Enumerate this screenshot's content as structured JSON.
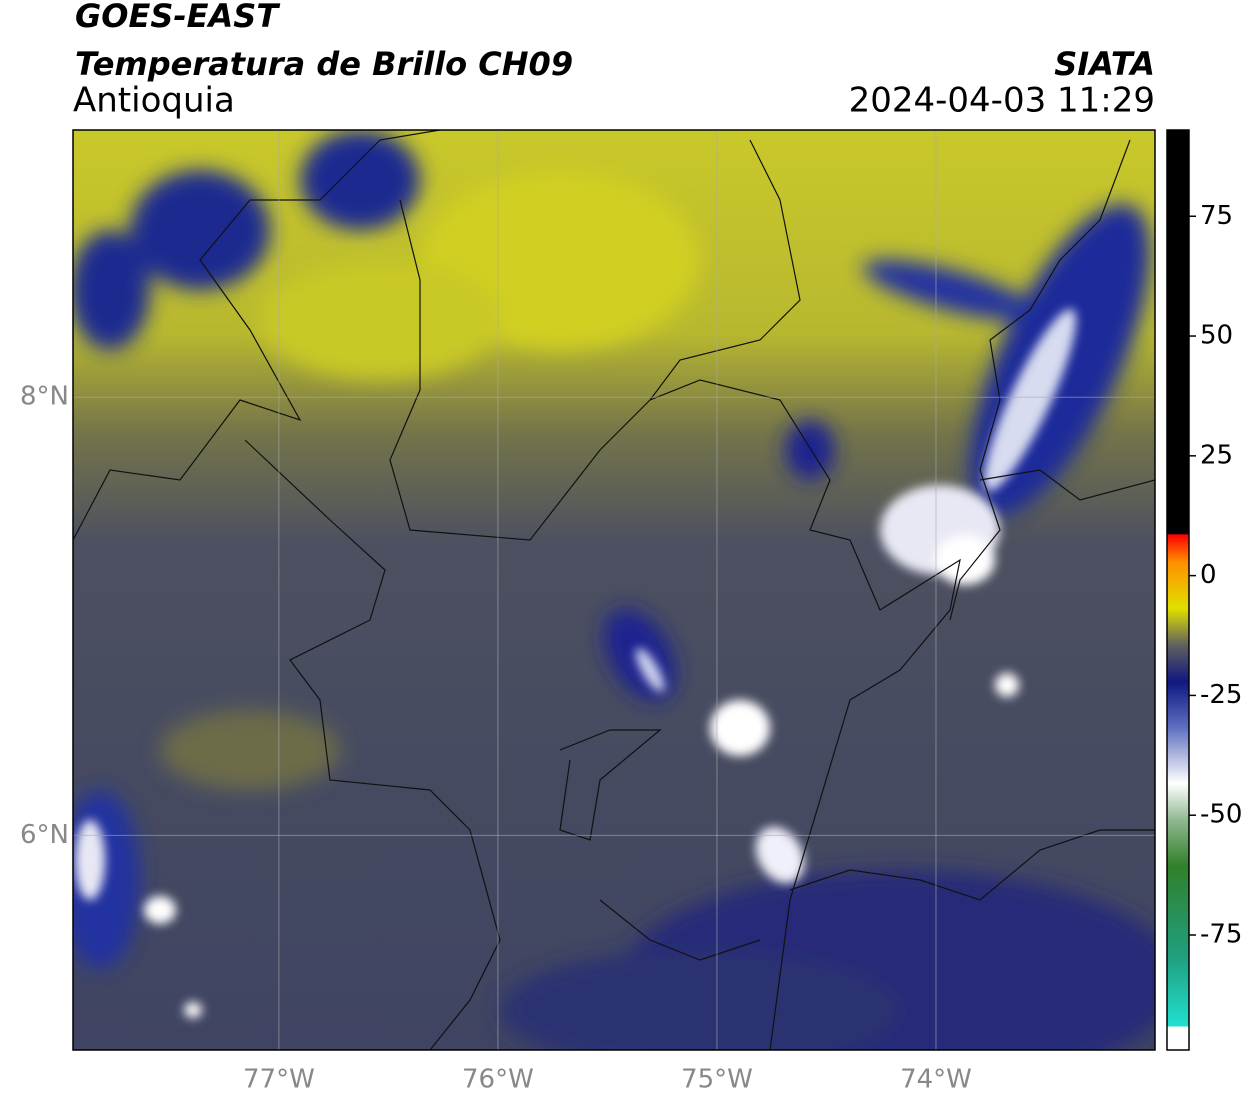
{
  "header": {
    "satellite": "GOES-EAST",
    "product": "Temperatura de Brillo CH09",
    "region": "Antioquia",
    "source": "SIATA",
    "datetime": "2024-04-03 11:29"
  },
  "map": {
    "xlim": [
      -77.94,
      -73.0
    ],
    "ylim": [
      5.02,
      9.22
    ],
    "xticks": [
      {
        "value": -77,
        "label": "77°W"
      },
      {
        "value": -76,
        "label": "76°W"
      },
      {
        "value": -75,
        "label": "75°W"
      },
      {
        "value": -74,
        "label": "74°W"
      }
    ],
    "yticks": [
      {
        "value": 6,
        "label": "6°N"
      },
      {
        "value": 8,
        "label": "8°N"
      }
    ],
    "grid": true
  },
  "colorbar": {
    "lim": [
      -99,
      93
    ],
    "ticks": [
      -75,
      -50,
      -25,
      0,
      25,
      50,
      75
    ]
  }
}
